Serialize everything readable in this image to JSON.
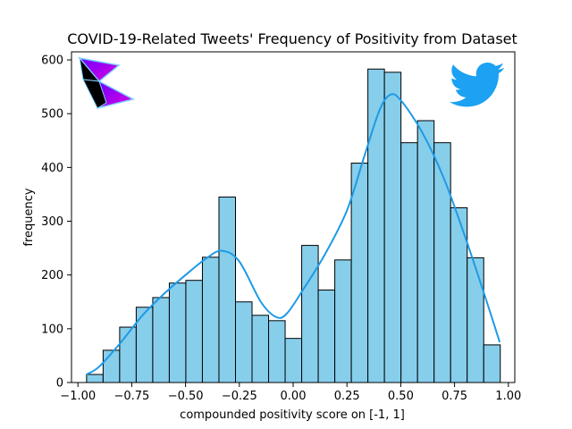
{
  "chart_data": {
    "type": "bar",
    "subtype": "histogram-with-kde",
    "title": "COVID-19-Related Tweets' Frequency of Positivity from Dataset",
    "xlabel": "compounded positivity score on [-1, 1]",
    "ylabel": "frequency",
    "xlim": [
      -1.03,
      1.03
    ],
    "ylim": [
      0,
      615
    ],
    "x_ticks": [
      -1.0,
      -0.75,
      -0.5,
      -0.25,
      0.0,
      0.25,
      0.5,
      0.75,
      1.0
    ],
    "x_tick_labels": [
      "−1.00",
      "−0.75",
      "−0.50",
      "−0.25",
      "0.00",
      "0.25",
      "0.50",
      "0.75",
      "1.00"
    ],
    "y_ticks": [
      0,
      100,
      200,
      300,
      400,
      500,
      600
    ],
    "y_tick_labels": [
      "0",
      "100",
      "200",
      "300",
      "400",
      "500",
      "600"
    ],
    "bins": {
      "start": -0.96,
      "width": 0.0769,
      "counts": [
        15,
        60,
        103,
        140,
        158,
        185,
        190,
        233,
        345,
        150,
        125,
        115,
        82,
        255,
        172,
        228,
        408,
        583,
        577,
        446,
        487,
        446,
        325,
        232,
        70
      ]
    },
    "kde_curve": {
      "x": [
        -0.96,
        -0.9,
        -0.8,
        -0.7,
        -0.6,
        -0.5,
        -0.4,
        -0.33,
        -0.25,
        -0.15,
        -0.08,
        -0.03,
        0.05,
        0.15,
        0.25,
        0.33,
        0.4,
        0.45,
        0.5,
        0.6,
        0.7,
        0.8,
        0.9,
        0.96
      ],
      "y": [
        15,
        30,
        75,
        125,
        165,
        200,
        232,
        245,
        225,
        150,
        122,
        128,
        175,
        240,
        320,
        420,
        505,
        535,
        525,
        465,
        380,
        270,
        150,
        75
      ]
    },
    "colors": {
      "bar_fill": "#87ceeb",
      "bar_edge": "#000000",
      "kde_line": "#1e9ae6",
      "logo_purple": "#a020f0",
      "twitter_blue": "#1da1f2"
    },
    "grid": false,
    "legend": "none"
  },
  "decorations": {
    "left_logo": "bird-shape-logo-icon",
    "right_logo": "twitter-bird-icon"
  }
}
